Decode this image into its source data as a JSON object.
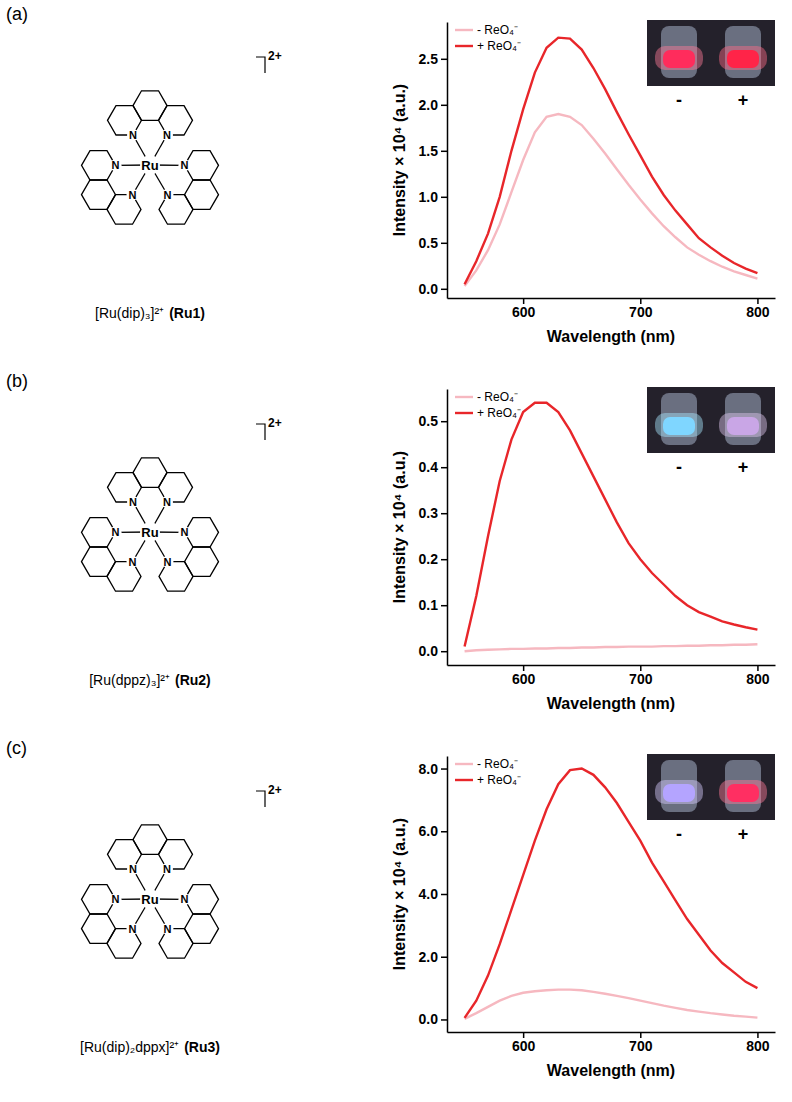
{
  "chart_data": [
    {
      "type": "line",
      "x_label": "Wavelength (nm)",
      "y_label": "Intensity × 10⁴ (a.u.)",
      "annotations": {
        "panel_label": "(a)",
        "compound": "[Ru(dip)₃]²⁺",
        "compound_code": "(Ru1)",
        "metal": "Ru",
        "donor_atom": "N",
        "charge": "2+",
        "inset_labels": [
          "-",
          "+"
        ]
      },
      "x": [
        550,
        560,
        570,
        580,
        590,
        600,
        610,
        620,
        630,
        640,
        650,
        660,
        670,
        680,
        690,
        700,
        710,
        720,
        730,
        740,
        750,
        760,
        770,
        780,
        790,
        800
      ],
      "series": [
        {
          "name": "- ReO₄⁻",
          "color": "#f6b8c0",
          "values": [
            0.03,
            0.2,
            0.42,
            0.7,
            1.05,
            1.4,
            1.7,
            1.87,
            1.9,
            1.87,
            1.78,
            1.63,
            1.47,
            1.3,
            1.13,
            0.97,
            0.82,
            0.68,
            0.56,
            0.45,
            0.37,
            0.3,
            0.24,
            0.19,
            0.15,
            0.11
          ]
        },
        {
          "name": "+ ReO₄⁻",
          "color": "#e8262a",
          "values": [
            0.05,
            0.3,
            0.6,
            1.0,
            1.5,
            1.95,
            2.35,
            2.62,
            2.73,
            2.72,
            2.6,
            2.4,
            2.17,
            1.92,
            1.68,
            1.45,
            1.22,
            1.02,
            0.85,
            0.7,
            0.55,
            0.45,
            0.36,
            0.28,
            0.22,
            0.17
          ]
        }
      ],
      "xlim": [
        535,
        815
      ],
      "xticks": [
        600,
        700,
        800
      ],
      "ylim": [
        -0.1,
        2.9
      ],
      "yticks": [
        {
          "value": 0,
          "label": "0.0"
        },
        {
          "value": 0.5,
          "label": "0.5"
        },
        {
          "value": 1,
          "label": "1.0"
        },
        {
          "value": 1.5,
          "label": "1.5"
        },
        {
          "value": 2,
          "label": "2.0"
        },
        {
          "value": 2.5,
          "label": "2.5"
        }
      ],
      "legend": "upper left",
      "grid": false
    },
    {
      "type": "line",
      "x_label": "Wavelength (nm)",
      "y_label": "Intensity × 10⁴ (a.u.)",
      "annotations": {
        "panel_label": "(b)",
        "compound": "[Ru(dppz)₃]²⁺",
        "compound_code": "(Ru2)",
        "metal": "Ru",
        "donor_atom": "N",
        "charge": "2+",
        "inset_labels": [
          "-",
          "+"
        ]
      },
      "x": [
        550,
        560,
        570,
        580,
        590,
        600,
        610,
        620,
        630,
        640,
        650,
        660,
        670,
        680,
        690,
        700,
        710,
        720,
        730,
        740,
        750,
        760,
        770,
        780,
        790,
        800
      ],
      "series": [
        {
          "name": "- ReO₄⁻",
          "color": "#f6b8c0",
          "values": [
            0.0,
            0.002,
            0.003,
            0.004,
            0.005,
            0.005,
            0.006,
            0.006,
            0.007,
            0.007,
            0.008,
            0.008,
            0.009,
            0.009,
            0.01,
            0.01,
            0.01,
            0.011,
            0.011,
            0.012,
            0.012,
            0.013,
            0.013,
            0.014,
            0.014,
            0.015
          ]
        },
        {
          "name": "+ ReO₄⁻",
          "color": "#e8262a",
          "values": [
            0.01,
            0.12,
            0.25,
            0.37,
            0.46,
            0.52,
            0.54,
            0.54,
            0.52,
            0.48,
            0.43,
            0.38,
            0.33,
            0.28,
            0.235,
            0.2,
            0.17,
            0.145,
            0.12,
            0.1,
            0.085,
            0.075,
            0.065,
            0.058,
            0.052,
            0.047
          ]
        }
      ],
      "xlim": [
        535,
        815
      ],
      "xticks": [
        600,
        700,
        800
      ],
      "ylim": [
        -0.03,
        0.57
      ],
      "yticks": [
        {
          "value": 0,
          "label": "0.0"
        },
        {
          "value": 0.1,
          "label": "0.1"
        },
        {
          "value": 0.2,
          "label": "0.2"
        },
        {
          "value": 0.3,
          "label": "0.3"
        },
        {
          "value": 0.4,
          "label": "0.4"
        },
        {
          "value": 0.5,
          "label": "0.5"
        }
      ],
      "legend": "upper left",
      "grid": false
    },
    {
      "type": "line",
      "x_label": "Wavelength (nm)",
      "y_label": "Intensity × 10⁴ (a.u.)",
      "annotations": {
        "panel_label": "(c)",
        "compound": "[Ru(dip)₂dppx]²⁺",
        "compound_code": "(Ru3)",
        "metal": "Ru",
        "donor_atom": "N",
        "charge": "2+",
        "inset_labels": [
          "-",
          "+"
        ]
      },
      "x": [
        550,
        560,
        570,
        580,
        590,
        600,
        610,
        620,
        630,
        640,
        650,
        660,
        670,
        680,
        690,
        700,
        710,
        720,
        730,
        740,
        750,
        760,
        770,
        780,
        790,
        800
      ],
      "series": [
        {
          "name": "- ReO₄⁻",
          "color": "#f6b8c0",
          "values": [
            0.02,
            0.2,
            0.4,
            0.6,
            0.75,
            0.85,
            0.9,
            0.93,
            0.95,
            0.95,
            0.93,
            0.88,
            0.82,
            0.75,
            0.68,
            0.6,
            0.52,
            0.44,
            0.37,
            0.3,
            0.25,
            0.2,
            0.16,
            0.12,
            0.09,
            0.06
          ]
        },
        {
          "name": "+ ReO₄⁻",
          "color": "#e8262a",
          "values": [
            0.05,
            0.6,
            1.4,
            2.4,
            3.5,
            4.6,
            5.7,
            6.7,
            7.5,
            7.95,
            8.0,
            7.8,
            7.4,
            6.9,
            6.3,
            5.7,
            5.0,
            4.4,
            3.8,
            3.2,
            2.7,
            2.2,
            1.8,
            1.5,
            1.2,
            1.0
          ]
        }
      ],
      "xlim": [
        535,
        815
      ],
      "xticks": [
        600,
        700,
        800
      ],
      "ylim": [
        -0.4,
        8.4
      ],
      "yticks": [
        {
          "value": 0,
          "label": "0.0"
        },
        {
          "value": 2,
          "label": "2.0"
        },
        {
          "value": 4,
          "label": "4.0"
        },
        {
          "value": 6,
          "label": "6.0"
        },
        {
          "value": 8,
          "label": "8.0"
        }
      ],
      "legend": "upper left",
      "grid": false
    }
  ]
}
